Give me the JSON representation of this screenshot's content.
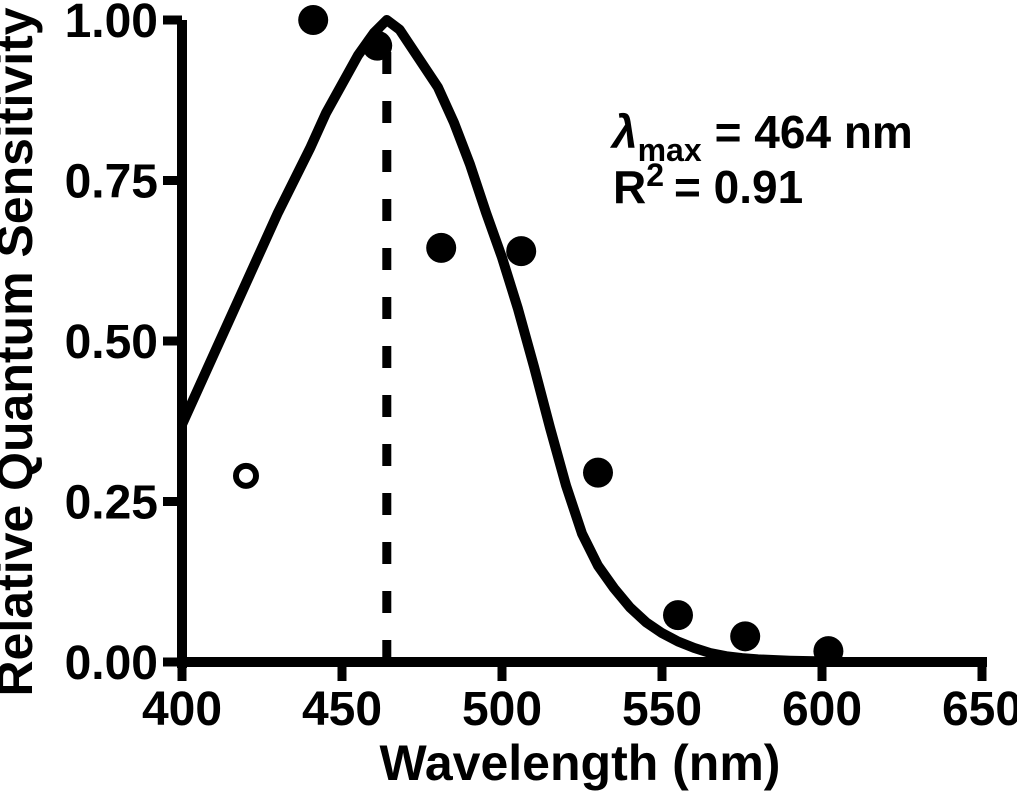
{
  "figure": {
    "background": "#ffffff",
    "ink": "#000000"
  },
  "chart_data": {
    "type": "scatter",
    "title": "",
    "xlabel": "Wavelength (nm)",
    "ylabel": "Relative Quantum Sensitivity",
    "xlim": [
      400,
      650
    ],
    "ylim": [
      0.0,
      1.0
    ],
    "grid": false,
    "legend": "none",
    "x_ticks": [
      {
        "label": "400",
        "value": 400
      },
      {
        "label": "450",
        "value": 450
      },
      {
        "label": "500",
        "value": 500
      },
      {
        "label": "550",
        "value": 550
      },
      {
        "label": "600",
        "value": 600
      },
      {
        "label": "650",
        "value": 650
      }
    ],
    "y_ticks": [
      {
        "label": "0.00",
        "value": 0.0
      },
      {
        "label": "0.25",
        "value": 0.25
      },
      {
        "label": "0.50",
        "value": 0.5
      },
      {
        "label": "0.75",
        "value": 0.75
      },
      {
        "label": "1.00",
        "value": 1.0
      }
    ],
    "lambda_max_nm": 464,
    "r_squared": 0.91,
    "series": [
      {
        "name": "measured-sensitivity-points",
        "marker": "filled-circle",
        "points": [
          [
            441,
            1.0
          ],
          [
            461,
            0.96
          ],
          [
            481,
            0.645
          ],
          [
            506,
            0.64
          ],
          [
            530,
            0.295
          ],
          [
            555,
            0.073
          ],
          [
            576,
            0.04
          ],
          [
            602,
            0.017
          ]
        ]
      },
      {
        "name": "open-circle-point",
        "marker": "open-circle",
        "points": [
          [
            420,
            0.29
          ]
        ]
      },
      {
        "name": "fitted-template-curve",
        "marker": "line",
        "points": [
          [
            400,
            0.37
          ],
          [
            405,
            0.425
          ],
          [
            410,
            0.48
          ],
          [
            415,
            0.535
          ],
          [
            420,
            0.59
          ],
          [
            425,
            0.645
          ],
          [
            430,
            0.7
          ],
          [
            435,
            0.75
          ],
          [
            440,
            0.8
          ],
          [
            445,
            0.855
          ],
          [
            450,
            0.9
          ],
          [
            455,
            0.945
          ],
          [
            460,
            0.98
          ],
          [
            464,
            1.0
          ],
          [
            468,
            0.985
          ],
          [
            472,
            0.955
          ],
          [
            476,
            0.925
          ],
          [
            480,
            0.895
          ],
          [
            485,
            0.84
          ],
          [
            490,
            0.775
          ],
          [
            495,
            0.7
          ],
          [
            500,
            0.63
          ],
          [
            505,
            0.55
          ],
          [
            510,
            0.46
          ],
          [
            515,
            0.365
          ],
          [
            520,
            0.275
          ],
          [
            525,
            0.2
          ],
          [
            530,
            0.15
          ],
          [
            535,
            0.115
          ],
          [
            540,
            0.085
          ],
          [
            545,
            0.062
          ],
          [
            550,
            0.045
          ],
          [
            555,
            0.032
          ],
          [
            560,
            0.022
          ],
          [
            565,
            0.014
          ],
          [
            570,
            0.009
          ],
          [
            575,
            0.006
          ],
          [
            580,
            0.004
          ],
          [
            590,
            0.002
          ],
          [
            600,
            0.001
          ]
        ]
      }
    ]
  },
  "annotation": {
    "lambda_symbol": "λ",
    "lambda_sub": "max",
    "lambda_rest": "= 464 nm",
    "r_base": "R",
    "r_sup": "2",
    "r_rest": "= 0.91"
  }
}
